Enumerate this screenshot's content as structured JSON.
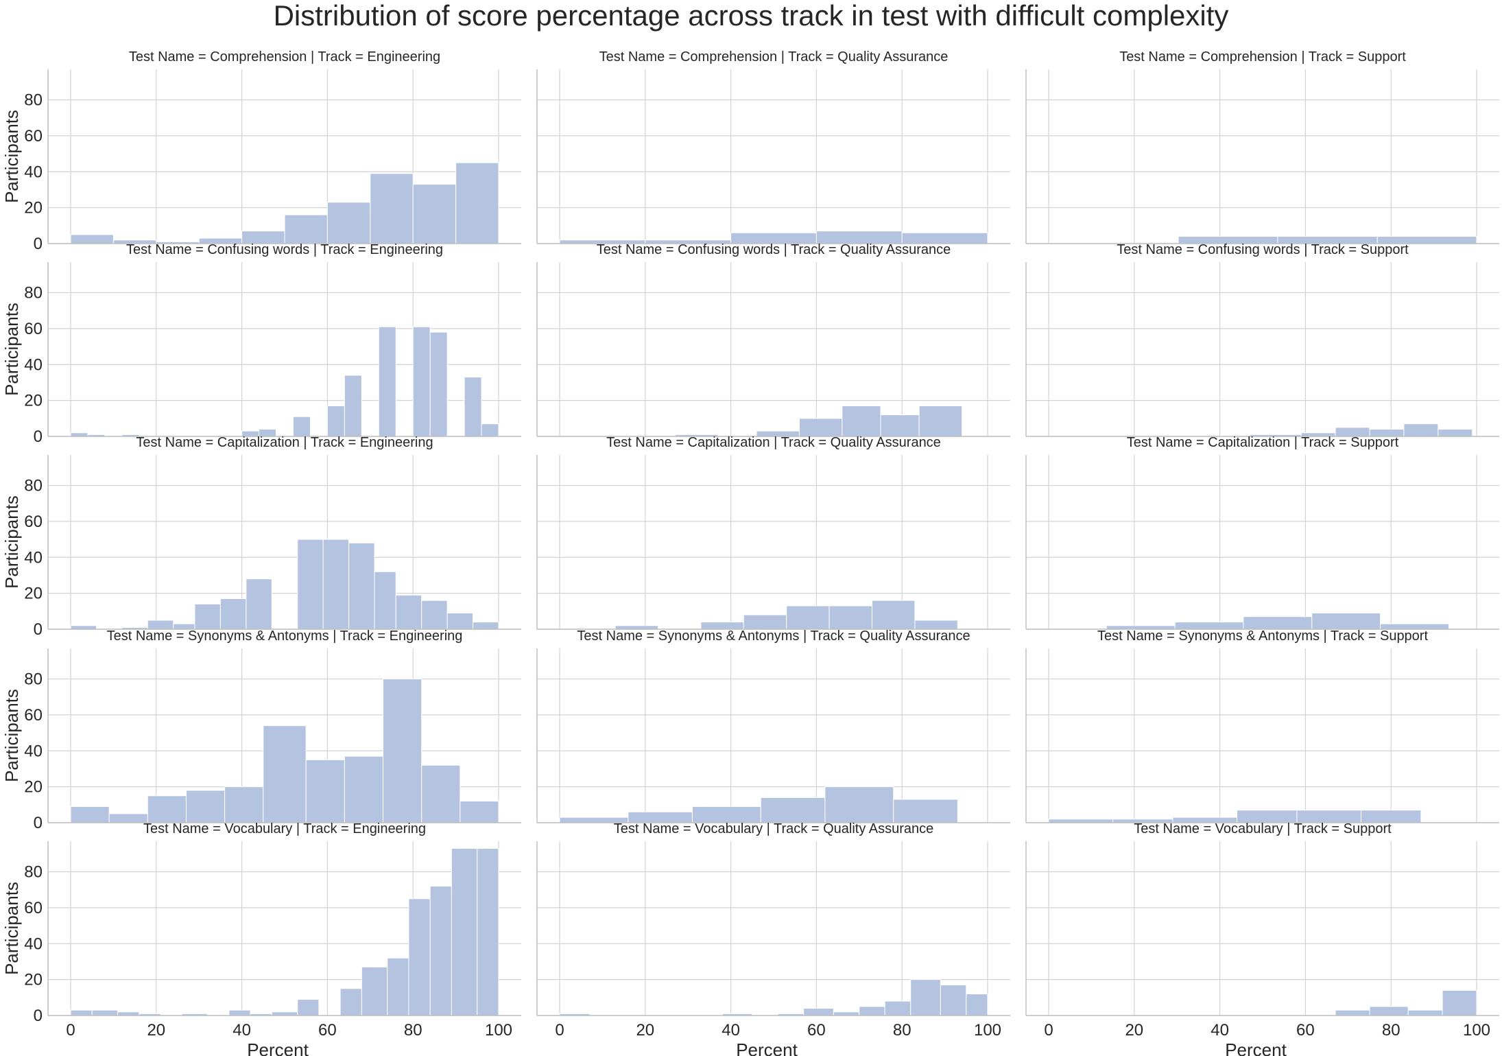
{
  "chart_data": {
    "type": "bar",
    "title": "Distribution of score percentage across track in test with difficult complexity",
    "xlabel": "Percent",
    "ylabel": "Participants",
    "xlim": [
      0,
      100
    ],
    "ylim": [
      0,
      97
    ],
    "xticks": [
      "0",
      "20",
      "40",
      "60",
      "80",
      "100"
    ],
    "yticks": [
      "0",
      "20",
      "40",
      "60",
      "80"
    ],
    "grid": true,
    "bar_color": "#b4c3df",
    "grid_color": "#d3d3d3",
    "panels": [
      {
        "title": "Test Name = Comprehension | Track = Engineering",
        "bins": [
          [
            0,
            10,
            5
          ],
          [
            10,
            20,
            2
          ],
          [
            20,
            30,
            1
          ],
          [
            30,
            40,
            3
          ],
          [
            40,
            50,
            7
          ],
          [
            50,
            60,
            16
          ],
          [
            60,
            70,
            23
          ],
          [
            70,
            80,
            39
          ],
          [
            80,
            90,
            33
          ],
          [
            90,
            100,
            45
          ]
        ]
      },
      {
        "title": "Test Name = Comprehension | Track = Quality Assurance",
        "bins": [
          [
            0,
            20,
            2
          ],
          [
            20,
            40,
            2
          ],
          [
            40,
            60,
            6
          ],
          [
            60,
            80,
            7
          ],
          [
            80,
            100,
            6
          ]
        ]
      },
      {
        "title": "Test Name = Comprehension | Track = Support",
        "bins": [
          [
            30.3,
            53.5,
            4
          ],
          [
            53.5,
            76.8,
            4
          ],
          [
            76.8,
            100,
            4
          ]
        ]
      },
      {
        "title": "Test Name = Confusing words | Track = Engineering",
        "bins": [
          [
            0,
            4,
            2
          ],
          [
            4,
            8,
            1
          ],
          [
            12,
            16,
            1
          ],
          [
            40,
            44,
            3
          ],
          [
            44,
            48,
            4
          ],
          [
            52,
            56,
            11
          ],
          [
            60,
            64,
            17
          ],
          [
            64,
            68,
            34
          ],
          [
            72,
            76,
            61
          ],
          [
            80,
            84,
            61
          ],
          [
            84,
            88,
            58
          ],
          [
            92,
            96,
            33
          ],
          [
            96,
            100,
            7
          ]
        ]
      },
      {
        "title": "Test Name = Confusing words | Track = Quality Assurance",
        "bins": [
          [
            27,
            37,
            1
          ],
          [
            46,
            56,
            3
          ],
          [
            56,
            66,
            10
          ],
          [
            66,
            75,
            17
          ],
          [
            75,
            84,
            12
          ],
          [
            84,
            94,
            17
          ]
        ]
      },
      {
        "title": "Test Name = Confusing words | Track = Support",
        "bins": [
          [
            47,
            59,
            1
          ],
          [
            59,
            67,
            2
          ],
          [
            67,
            75,
            5
          ],
          [
            75,
            83,
            4
          ],
          [
            83,
            91,
            7
          ],
          [
            91,
            99,
            4
          ]
        ]
      },
      {
        "title": "Test Name = Capitalization | Track = Engineering",
        "bins": [
          [
            0,
            6,
            2
          ],
          [
            12,
            18,
            1
          ],
          [
            18,
            24,
            5
          ],
          [
            24,
            29,
            3
          ],
          [
            29,
            35,
            14
          ],
          [
            35,
            41,
            17
          ],
          [
            41,
            47,
            28
          ],
          [
            53,
            59,
            50
          ],
          [
            59,
            65,
            50
          ],
          [
            65,
            71,
            48
          ],
          [
            71,
            76,
            32
          ],
          [
            76,
            82,
            19
          ],
          [
            82,
            88,
            16
          ],
          [
            88,
            94,
            9
          ],
          [
            94,
            100,
            4
          ]
        ]
      },
      {
        "title": "Test Name = Capitalization | Track = Quality Assurance",
        "bins": [
          [
            13,
            23,
            2
          ],
          [
            33,
            43,
            4
          ],
          [
            43,
            53,
            8
          ],
          [
            53,
            63,
            13
          ],
          [
            63,
            73,
            13
          ],
          [
            73,
            83,
            16
          ],
          [
            83,
            93,
            5
          ]
        ]
      },
      {
        "title": "Test Name = Capitalization | Track = Support",
        "bins": [
          [
            13.5,
            29.5,
            2
          ],
          [
            29.5,
            45.5,
            4
          ],
          [
            45.5,
            61.5,
            7
          ],
          [
            61.5,
            77.5,
            9
          ],
          [
            77.5,
            93.5,
            3
          ]
        ]
      },
      {
        "title": "Test Name = Synonyms & Antonyms | Track = Engineering",
        "bins": [
          [
            0,
            9,
            9
          ],
          [
            9,
            18,
            5
          ],
          [
            18,
            27,
            15
          ],
          [
            27,
            36,
            18
          ],
          [
            36,
            45,
            20
          ],
          [
            45,
            55,
            54
          ],
          [
            55,
            64,
            35
          ],
          [
            64,
            73,
            37
          ],
          [
            73,
            82,
            80
          ],
          [
            82,
            91,
            32
          ],
          [
            91,
            100,
            12
          ]
        ]
      },
      {
        "title": "Test Name = Synonyms & Antonyms | Track = Quality Assurance",
        "bins": [
          [
            0,
            16,
            3
          ],
          [
            16,
            31,
            6
          ],
          [
            31,
            47,
            9
          ],
          [
            47,
            62,
            14
          ],
          [
            62,
            78,
            20
          ],
          [
            78,
            93,
            13
          ]
        ]
      },
      {
        "title": "Test Name = Synonyms & Antonyms | Track = Support",
        "bins": [
          [
            0,
            15,
            2
          ],
          [
            15,
            29,
            2
          ],
          [
            29,
            44,
            3
          ],
          [
            44,
            58,
            7
          ],
          [
            58,
            73,
            7
          ],
          [
            73,
            87,
            7
          ]
        ]
      },
      {
        "title": "Test Name = Vocabulary | Track = Engineering",
        "bins": [
          [
            0,
            5,
            3
          ],
          [
            5,
            11,
            3
          ],
          [
            11,
            16,
            2
          ],
          [
            16,
            21,
            1
          ],
          [
            26,
            32,
            1
          ],
          [
            37,
            42,
            3
          ],
          [
            42,
            47,
            1
          ],
          [
            47,
            53,
            2
          ],
          [
            53,
            58,
            9
          ],
          [
            63,
            68,
            15
          ],
          [
            68,
            74,
            27
          ],
          [
            74,
            79,
            32
          ],
          [
            79,
            84,
            65
          ],
          [
            84,
            89,
            72
          ],
          [
            89,
            95,
            93
          ],
          [
            95,
            100,
            93
          ]
        ]
      },
      {
        "title": "Test Name = Vocabulary | Track = Quality Assurance",
        "bins": [
          [
            0,
            7,
            1
          ],
          [
            38,
            45,
            1
          ],
          [
            51,
            57,
            1
          ],
          [
            57,
            64,
            4
          ],
          [
            64,
            70,
            2
          ],
          [
            70,
            76,
            5
          ],
          [
            76,
            82,
            8
          ],
          [
            82,
            89,
            20
          ],
          [
            89,
            95,
            17
          ],
          [
            95,
            100,
            12
          ]
        ]
      },
      {
        "title": "Test Name = Vocabulary | Track = Support",
        "bins": [
          [
            67,
            75,
            3
          ],
          [
            75,
            84,
            5
          ],
          [
            84,
            92,
            3
          ],
          [
            92,
            100,
            14
          ]
        ]
      }
    ]
  }
}
